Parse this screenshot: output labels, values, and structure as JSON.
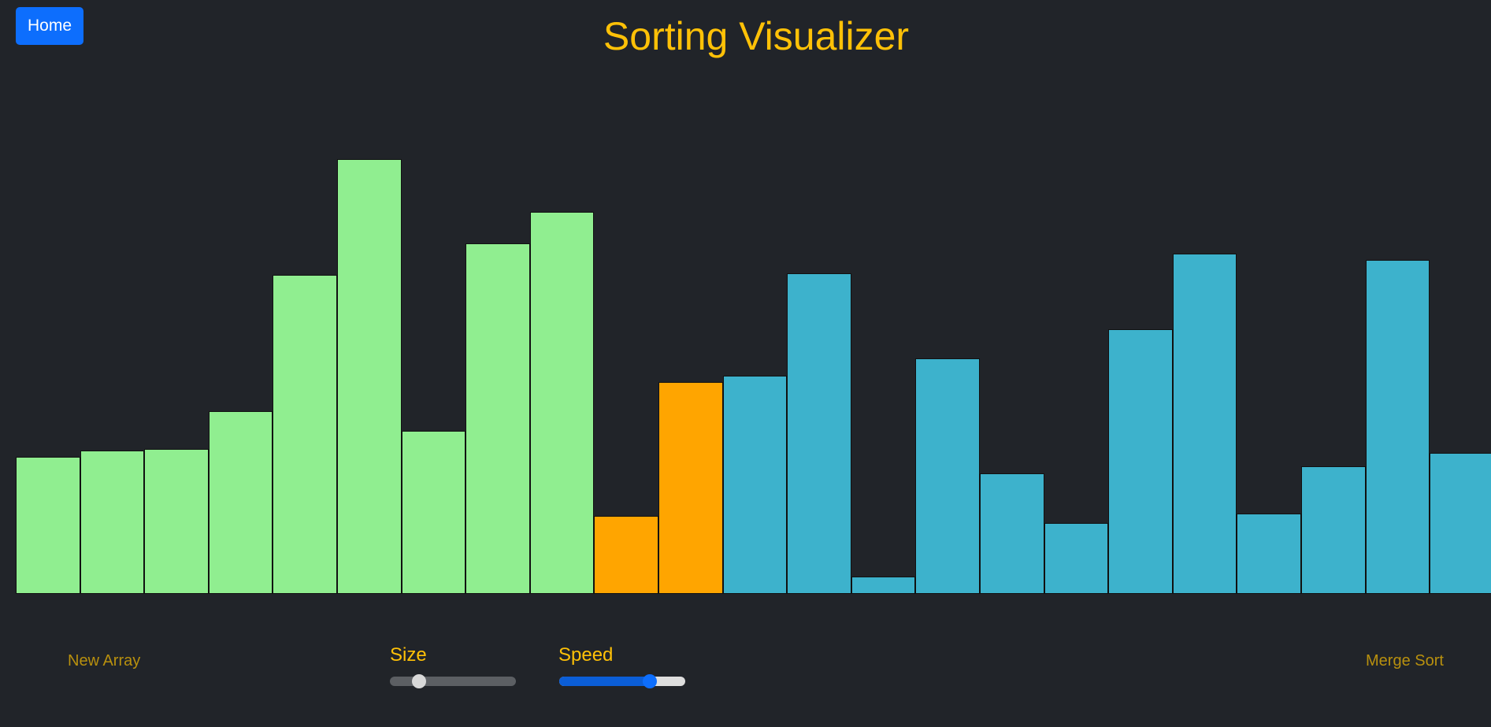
{
  "header": {
    "home_label": "Home",
    "title": "Sorting Visualizer"
  },
  "colors": {
    "background": "#212429",
    "sorted": "#90ee90",
    "comparing": "#ffa500",
    "unsorted": "#3db2cc",
    "title": "#ffc107",
    "primary": "#0d6efd"
  },
  "array": {
    "max_value": 674,
    "bars": [
      {
        "value": 174,
        "state": "sorted"
      },
      {
        "value": 182,
        "state": "sorted"
      },
      {
        "value": 184,
        "state": "sorted"
      },
      {
        "value": 232,
        "state": "sorted"
      },
      {
        "value": 405,
        "state": "sorted"
      },
      {
        "value": 552,
        "state": "sorted"
      },
      {
        "value": 207,
        "state": "sorted"
      },
      {
        "value": 445,
        "state": "sorted"
      },
      {
        "value": 485,
        "state": "sorted"
      },
      {
        "value": 99,
        "state": "comparing"
      },
      {
        "value": 269,
        "state": "comparing"
      },
      {
        "value": 277,
        "state": "unsorted"
      },
      {
        "value": 407,
        "state": "unsorted"
      },
      {
        "value": 22,
        "state": "unsorted"
      },
      {
        "value": 299,
        "state": "unsorted"
      },
      {
        "value": 153,
        "state": "unsorted"
      },
      {
        "value": 90,
        "state": "unsorted"
      },
      {
        "value": 336,
        "state": "unsorted"
      },
      {
        "value": 432,
        "state": "unsorted"
      },
      {
        "value": 102,
        "state": "unsorted"
      },
      {
        "value": 162,
        "state": "unsorted"
      },
      {
        "value": 424,
        "state": "unsorted"
      },
      {
        "value": 179,
        "state": "unsorted"
      }
    ]
  },
  "controls": {
    "new_array_label": "New Array",
    "size_label": "Size",
    "size_value": 0.23,
    "speed_label": "Speed",
    "speed_value": 0.72,
    "algorithm_label": "Merge Sort"
  }
}
